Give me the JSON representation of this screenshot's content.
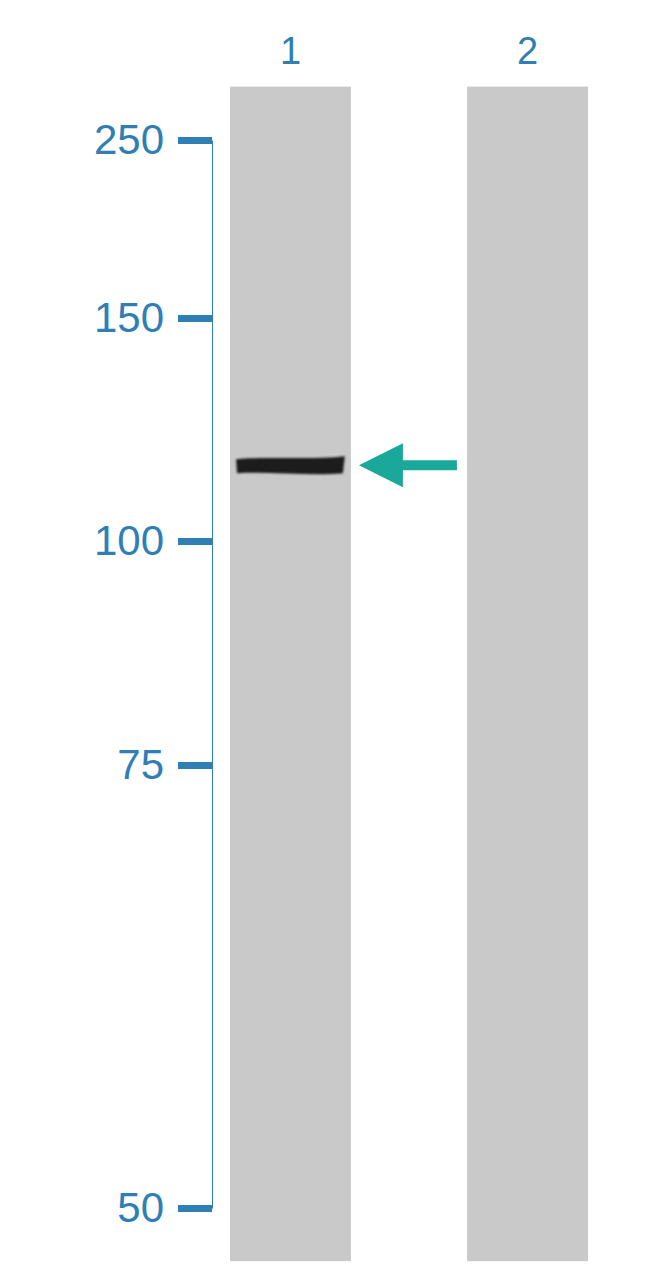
{
  "chart_data": {
    "type": "western_blot",
    "categories": [
      "1",
      "2"
    ],
    "values": [
      117,
      null
    ],
    "color": "#1e1e1e",
    "ylim": [
      280,
      47
    ],
    "yticks": [
      250,
      150,
      100,
      75,
      50
    ]
  }
}
